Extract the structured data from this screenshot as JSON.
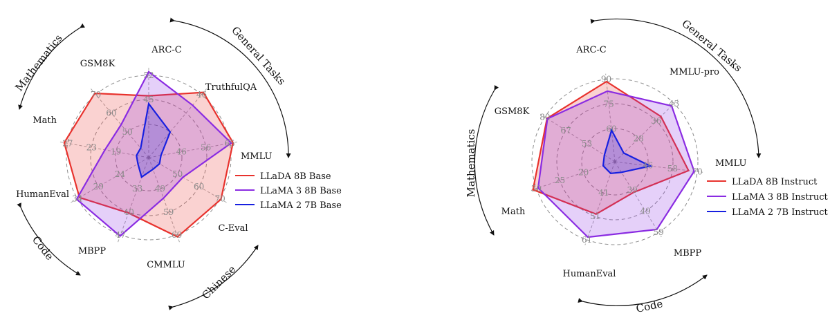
{
  "chart_data": [
    {
      "type": "radar",
      "categories": [
        "ARC-C",
        "TruthfulQA",
        "MMLU",
        "C-Eval",
        "CMMLU",
        "MBPP",
        "HumanEval",
        "Math",
        "GSM8K"
      ],
      "series": [
        {
          "name": "LLaDA 8B Base",
          "color": "#e8322d",
          "values": [
            47.9,
            46.4,
            65.9,
            70.5,
            69.9,
            40.0,
            33.5,
            31.4,
            70.7
          ]
        },
        {
          "name": "LLaMA 3 8B Base",
          "color": "#8a2be2",
          "values": [
            53.1,
            44.0,
            65.4,
            51.6,
            52.2,
            47.4,
            34.2,
            20.5,
            53.1
          ]
        },
        {
          "name": "LLaMA 2 7B Base",
          "color": "#1720e0",
          "values": [
            46.3,
            39.0,
            45.9,
            34.5,
            33.6,
            28.5,
            15.8,
            4.8,
            14.0
          ]
        }
      ],
      "tick_values": [
        [
          "",
          "45",
          "52"
        ],
        [
          "",
          "",
          "46"
        ],
        [
          "46",
          "56",
          "65"
        ],
        [
          "50",
          "60",
          "70"
        ],
        [
          "49",
          "59",
          "69"
        ],
        [
          "33",
          "40",
          "47"
        ],
        [
          "24",
          "29",
          "34"
        ],
        [
          "19",
          "23",
          "27"
        ],
        [
          "50",
          "60",
          "70"
        ]
      ],
      "legend": "right",
      "group_labels": [
        "General Tasks",
        "Mathematics",
        "Code",
        "Chinese"
      ]
    },
    {
      "type": "radar",
      "categories": [
        "ARC-C",
        "MMLU-pro",
        "MMLU",
        "MBPP",
        "HumanEval",
        "Math",
        "GSM8K"
      ],
      "series": [
        {
          "name": "LLaDA 8B Instruct",
          "color": "#e8322d",
          "values": [
            88.5,
            37.0,
            65.5,
            39.0,
            49.4,
            31.9,
            78.6
          ]
        },
        {
          "name": "LLaMA 3 8B Instruct",
          "color": "#8a2be2",
          "values": [
            82.4,
            41.9,
            68.4,
            57.6,
            59.8,
            29.6,
            78.3
          ]
        },
        {
          "name": "LLaMA 2 7B Instruct",
          "color": "#1720e0",
          "values": [
            57.3,
            17.0,
            45.9,
            28.9,
            15.9,
            3.8,
            29.0
          ]
        }
      ],
      "tick_values": [
        [
          "60",
          "75",
          "90"
        ],
        [
          "28",
          "36",
          "43"
        ],
        [
          "46",
          "58",
          "70"
        ],
        [
          "39",
          "49",
          "59"
        ],
        [
          "41",
          "51",
          "61"
        ],
        [
          "20",
          "25",
          "30"
        ],
        [
          "53",
          "67",
          "80"
        ]
      ],
      "legend": "right",
      "group_labels": [
        "General Tasks",
        "Mathematics",
        "Code"
      ]
    }
  ]
}
